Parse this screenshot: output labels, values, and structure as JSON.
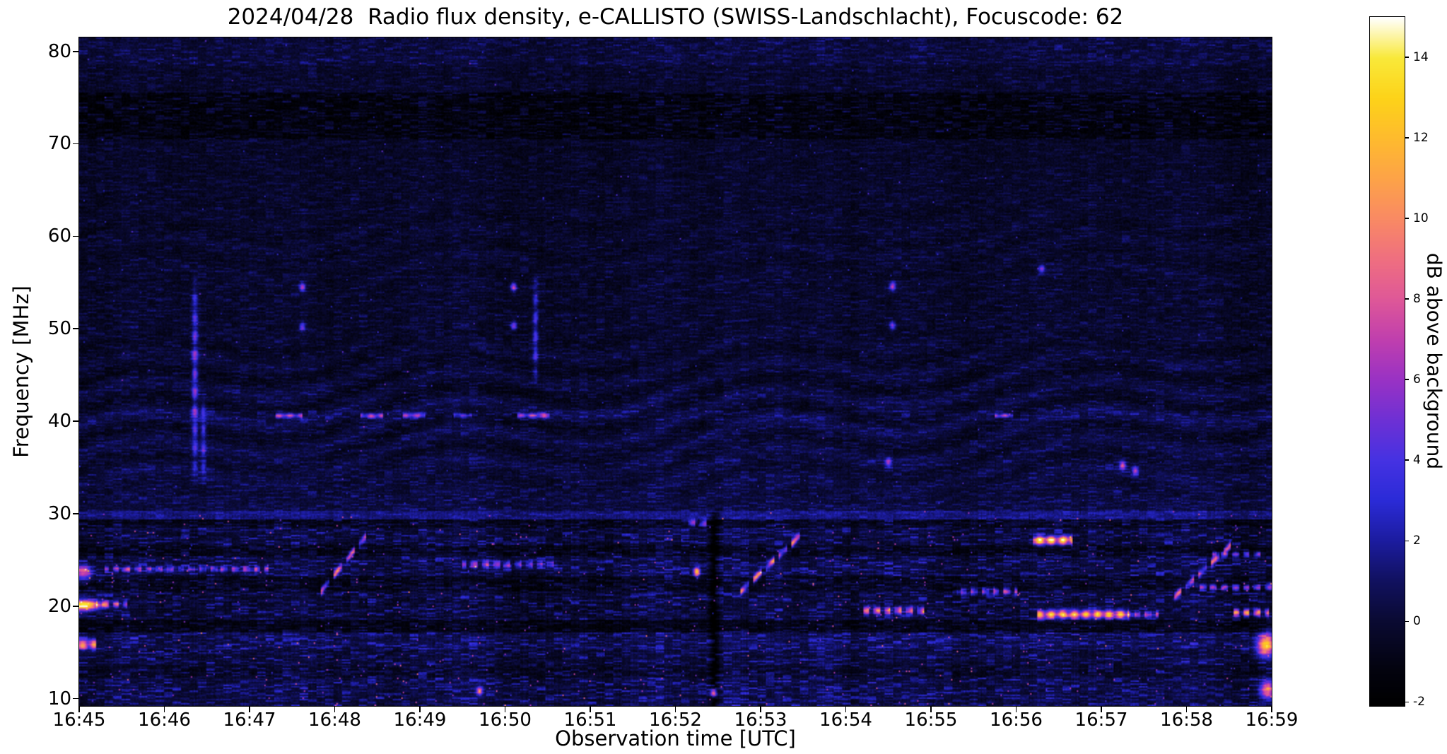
{
  "chart_data": {
    "type": "heatmap",
    "title": "2024/04/28  Radio flux density, e-CALLISTO (SWISS-Landschlacht), Focuscode: 62",
    "xlabel": "Observation time [UTC]",
    "ylabel": "Frequency [MHz]",
    "colorbar_label": "dB above background",
    "x_ticks": [
      "16:45",
      "16:46",
      "16:47",
      "16:48",
      "16:49",
      "16:50",
      "16:51",
      "16:52",
      "16:53",
      "16:54",
      "16:55",
      "16:56",
      "16:57",
      "16:58",
      "16:59"
    ],
    "y_ticks": [
      80,
      70,
      60,
      50,
      40,
      30,
      20,
      10
    ],
    "colorbar_ticks": [
      14,
      12,
      10,
      8,
      6,
      4,
      2,
      0,
      -2
    ],
    "time_range_min": [
      0,
      14
    ],
    "freq_range_mhz": [
      9.2,
      81.5
    ],
    "value_range_db": [
      -2.1,
      15.0
    ],
    "legend_position": "right-colorbar",
    "grid": false,
    "colormap_stops": [
      [
        -2.1,
        "#000000"
      ],
      [
        -1.2,
        "#03030f"
      ],
      [
        0,
        "#0a0a33"
      ],
      [
        1,
        "#111160"
      ],
      [
        2,
        "#1c1ca0"
      ],
      [
        3,
        "#2b2bd8"
      ],
      [
        4,
        "#4632e2"
      ],
      [
        5,
        "#6f30d4"
      ],
      [
        6,
        "#9a32c4"
      ],
      [
        7,
        "#c03fae"
      ],
      [
        8,
        "#df5898"
      ],
      [
        9,
        "#ef6f80"
      ],
      [
        10,
        "#f98a64"
      ],
      [
        11,
        "#fda348"
      ],
      [
        12,
        "#febb2e"
      ],
      [
        13,
        "#fdd319"
      ],
      [
        14,
        "#f9e93a"
      ],
      [
        15,
        "#ffffff"
      ]
    ],
    "background_profile": [
      {
        "f_hi": 81.5,
        "f_lo": 78.5,
        "base": 0.7,
        "spread": 2.2
      },
      {
        "f_hi": 78.5,
        "f_lo": 75.5,
        "base": 0.2,
        "spread": 1.8
      },
      {
        "f_hi": 75.5,
        "f_lo": 70.5,
        "base": -0.5,
        "spread": 2.8
      },
      {
        "f_hi": 70.5,
        "f_lo": 66.0,
        "base": 0.0,
        "spread": 1.6
      },
      {
        "f_hi": 66.0,
        "f_lo": 61.0,
        "base": 0.1,
        "spread": 1.7
      },
      {
        "f_hi": 61.0,
        "f_lo": 56.0,
        "base": 0.15,
        "spread": 1.8
      },
      {
        "f_hi": 56.0,
        "f_lo": 47.0,
        "base": 0.2,
        "spread": 1.9
      },
      {
        "f_hi": 47.0,
        "f_lo": 43.0,
        "base": 0.3,
        "spread": 2.0
      },
      {
        "f_hi": 43.0,
        "f_lo": 41.1,
        "base": 0.45,
        "spread": 2.0
      },
      {
        "f_hi": 41.1,
        "f_lo": 40.1,
        "base": 0.9,
        "spread": 2.4
      },
      {
        "f_hi": 40.1,
        "f_lo": 36.0,
        "base": 0.5,
        "spread": 2.0
      },
      {
        "f_hi": 36.0,
        "f_lo": 32.0,
        "base": 0.65,
        "spread": 2.1
      },
      {
        "f_hi": 32.0,
        "f_lo": 30.3,
        "base": 0.8,
        "spread": 2.2
      },
      {
        "f_hi": 30.3,
        "f_lo": 29.4,
        "base": 2.0,
        "spread": 1.6
      },
      {
        "f_hi": 29.4,
        "f_lo": 28.4,
        "base": 0.2,
        "spread": 3.0
      },
      {
        "f_hi": 28.4,
        "f_lo": 26.6,
        "base": 1.1,
        "spread": 3.4
      },
      {
        "f_hi": 26.6,
        "f_lo": 25.4,
        "base": 0.1,
        "spread": 3.0
      },
      {
        "f_hi": 25.4,
        "f_lo": 23.2,
        "base": 1.3,
        "spread": 3.6
      },
      {
        "f_hi": 23.2,
        "f_lo": 21.6,
        "base": 0.2,
        "spread": 3.0
      },
      {
        "f_hi": 21.6,
        "f_lo": 20.1,
        "base": 1.0,
        "spread": 3.4
      },
      {
        "f_hi": 20.1,
        "f_lo": 18.6,
        "base": 0.9,
        "spread": 3.2
      },
      {
        "f_hi": 18.6,
        "f_lo": 17.2,
        "base": -0.2,
        "spread": 2.6
      },
      {
        "f_hi": 17.2,
        "f_lo": 15.3,
        "base": 1.6,
        "spread": 3.4
      },
      {
        "f_hi": 15.3,
        "f_lo": 13.6,
        "base": 1.1,
        "spread": 3.2
      },
      {
        "f_hi": 13.6,
        "f_lo": 12.2,
        "base": 0.6,
        "spread": 3.0
      },
      {
        "f_hi": 12.2,
        "f_lo": 9.2,
        "base": 1.3,
        "spread": 3.4
      }
    ],
    "features": [
      {
        "type": "blob",
        "t": 0.06,
        "f": 20.1,
        "dt": 0.18,
        "df": 0.55,
        "i": 15
      },
      {
        "type": "blob",
        "t": 0.05,
        "f": 23.6,
        "dt": 0.1,
        "df": 0.8,
        "i": 8
      },
      {
        "type": "hstreak",
        "t0": 0.0,
        "t1": 0.18,
        "f": 15.8,
        "hw": 0.5,
        "i": 10,
        "dash": 0
      },
      {
        "type": "hstreak",
        "t0": 0.2,
        "t1": 0.55,
        "f": 20.2,
        "hw": 0.35,
        "i": 8,
        "dash": 1
      },
      {
        "type": "hstreak",
        "t0": 0.3,
        "t1": 2.2,
        "f": 24.0,
        "hw": 0.3,
        "i": 6,
        "dash": 1
      },
      {
        "type": "vline",
        "t": 1.35,
        "f0": 33,
        "f1": 56,
        "i": 6.5,
        "w": 0.035
      },
      {
        "type": "vline",
        "t": 1.45,
        "f0": 33,
        "f1": 43,
        "i": 5,
        "w": 0.03
      },
      {
        "type": "drift",
        "t0": 2.78,
        "f0": 21.0,
        "t1": 3.35,
        "f1": 27.5,
        "i": 8.5,
        "dash": 1
      },
      {
        "type": "dot",
        "t": 2.62,
        "f": 54.5,
        "i": 7
      },
      {
        "type": "dot",
        "t": 2.62,
        "f": 50.2,
        "i": 5.5
      },
      {
        "type": "hstreak",
        "t0": 2.3,
        "t1": 2.6,
        "f": 40.6,
        "hw": 0.25,
        "i": 7,
        "dash": 0
      },
      {
        "type": "hstreak",
        "t0": 3.3,
        "t1": 3.55,
        "f": 40.6,
        "hw": 0.25,
        "i": 7,
        "dash": 0
      },
      {
        "type": "hstreak",
        "t0": 3.8,
        "t1": 4.05,
        "f": 40.6,
        "hw": 0.25,
        "i": 6.5,
        "dash": 0
      },
      {
        "type": "hstreak",
        "t0": 4.4,
        "t1": 4.6,
        "f": 40.6,
        "hw": 0.22,
        "i": 5,
        "dash": 0
      },
      {
        "type": "hstreak",
        "t0": 5.15,
        "t1": 5.5,
        "f": 40.6,
        "hw": 0.25,
        "i": 7,
        "dash": 0
      },
      {
        "type": "dot",
        "t": 5.1,
        "f": 54.5,
        "i": 7.5
      },
      {
        "type": "dot",
        "t": 5.1,
        "f": 50.3,
        "i": 6
      },
      {
        "type": "vline",
        "t": 5.35,
        "f0": 44,
        "f1": 56,
        "i": 5,
        "w": 0.03
      },
      {
        "type": "hstreak",
        "t0": 4.5,
        "t1": 5.6,
        "f": 24.5,
        "hw": 0.4,
        "i": 5.5,
        "dash": 1
      },
      {
        "type": "dot",
        "t": 7.25,
        "f": 23.7,
        "i": 13
      },
      {
        "type": "notch",
        "t": 7.45,
        "f0": 9.2,
        "f1": 30,
        "i": -2.5,
        "w": 0.05
      },
      {
        "type": "hstreak",
        "t0": 7.1,
        "t1": 7.35,
        "f": 29.0,
        "hw": 0.4,
        "i": 6,
        "dash": 1
      },
      {
        "type": "drift",
        "t0": 7.75,
        "f0": 21.5,
        "t1": 8.5,
        "f1": 28.0,
        "i": 9.5,
        "dash": 1
      },
      {
        "type": "dot",
        "t": 9.55,
        "f": 54.6,
        "i": 7
      },
      {
        "type": "dot",
        "t": 9.55,
        "f": 50.3,
        "i": 5.5
      },
      {
        "type": "dot",
        "t": 9.5,
        "f": 35.6,
        "i": 6.5
      },
      {
        "type": "hstreak",
        "t0": 9.2,
        "t1": 9.9,
        "f": 19.5,
        "hw": 0.4,
        "i": 9,
        "dash": 1
      },
      {
        "type": "hstreak",
        "t0": 10.3,
        "t1": 11.0,
        "f": 21.6,
        "hw": 0.35,
        "i": 7,
        "dash": 1
      },
      {
        "type": "hstreak",
        "t0": 10.75,
        "t1": 10.95,
        "f": 40.6,
        "hw": 0.22,
        "i": 6.5,
        "dash": 0
      },
      {
        "type": "hstreak",
        "t0": 11.2,
        "t1": 11.65,
        "f": 27.1,
        "hw": 0.45,
        "i": 13.5,
        "dash": 0
      },
      {
        "type": "hstreak",
        "t0": 11.25,
        "t1": 12.3,
        "f": 19.1,
        "hw": 0.45,
        "i": 12,
        "dash": 0
      },
      {
        "type": "hstreak",
        "t0": 12.3,
        "t1": 12.65,
        "f": 19.1,
        "hw": 0.35,
        "i": 8,
        "dash": 1
      },
      {
        "type": "dot",
        "t": 12.25,
        "f": 35.2,
        "i": 8
      },
      {
        "type": "dot",
        "t": 12.4,
        "f": 34.6,
        "i": 7
      },
      {
        "type": "dot",
        "t": 11.3,
        "f": 56.5,
        "i": 5.5
      },
      {
        "type": "drift",
        "t0": 12.85,
        "f0": 21.0,
        "t1": 13.5,
        "f1": 26.5,
        "i": 8.5,
        "dash": 1
      },
      {
        "type": "hstreak",
        "t0": 13.1,
        "t1": 14.0,
        "f": 22.0,
        "hw": 0.3,
        "i": 7,
        "dash": 1
      },
      {
        "type": "hstreak",
        "t0": 13.3,
        "t1": 13.9,
        "f": 25.6,
        "hw": 0.3,
        "i": 6,
        "dash": 1
      },
      {
        "type": "hstreak",
        "t0": 13.55,
        "t1": 13.95,
        "f": 19.3,
        "hw": 0.4,
        "i": 10,
        "dash": 1
      },
      {
        "type": "blob",
        "t": 13.93,
        "f": 15.8,
        "dt": 0.1,
        "df": 1.2,
        "i": 12.5
      },
      {
        "type": "blob",
        "t": 13.95,
        "f": 11.0,
        "dt": 0.08,
        "df": 1.0,
        "i": 9
      },
      {
        "type": "dot",
        "t": 7.45,
        "f": 10.6,
        "i": 10
      },
      {
        "type": "dot",
        "t": 4.7,
        "f": 10.8,
        "i": 9
      }
    ],
    "noise_seed": 1337
  }
}
